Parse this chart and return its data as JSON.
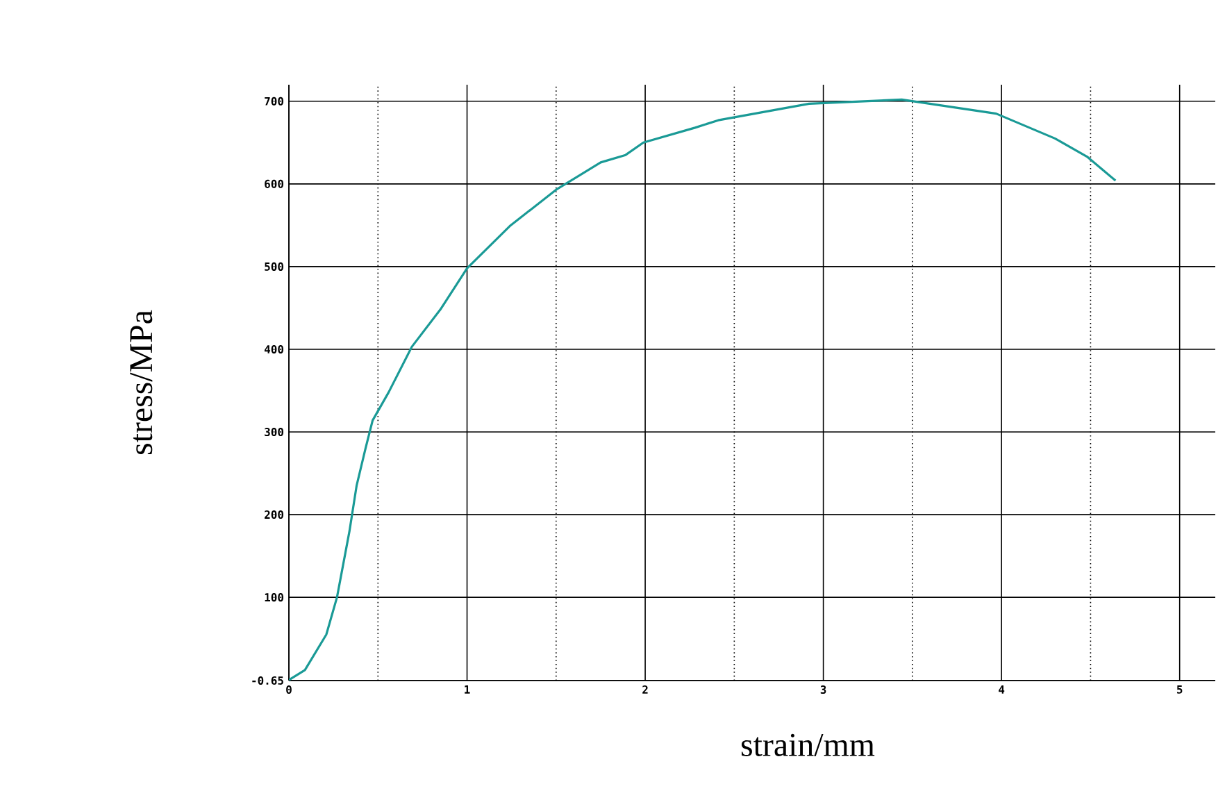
{
  "chart_data": {
    "type": "line",
    "xlabel": "strain/mm",
    "ylabel": "stress/MPa",
    "x": [
      0,
      0.09,
      0.21,
      0.27,
      0.34,
      0.38,
      0.43,
      0.47,
      0.56,
      0.69,
      0.85,
      1.0,
      1.24,
      1.5,
      1.75,
      1.89,
      1.99,
      2.28,
      2.41,
      2.92,
      3.44,
      3.97,
      4.3,
      4.48,
      4.64
    ],
    "series": [
      {
        "color": "#1a9a96",
        "values": [
          0,
          12,
          55,
          100,
          180,
          235,
          280,
          314,
          348,
          403,
          448,
          498,
          549,
          593,
          626,
          635,
          650,
          668,
          677,
          697,
          702,
          685,
          655,
          633,
          604
        ]
      }
    ],
    "xlim": [
      0,
      5.2
    ],
    "ylim": [
      -0.65,
      720
    ],
    "xticks": [
      0,
      1,
      2,
      3,
      4,
      5
    ],
    "yticks": [
      -0.65,
      100,
      200,
      300,
      400,
      500,
      600,
      700
    ],
    "grid": true,
    "marker": "none",
    "line_style": "solid"
  }
}
